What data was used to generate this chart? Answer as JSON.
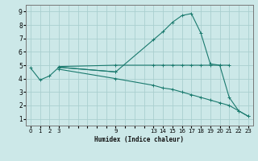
{
  "xlabel": "Humidex (Indice chaleur)",
  "bg_color": "#cce8e8",
  "grid_color": "#aacfcf",
  "line_color": "#1a7a6e",
  "xlim": [
    -0.5,
    23.5
  ],
  "ylim": [
    0.5,
    9.5
  ],
  "xticks_all": [
    0,
    1,
    2,
    3,
    4,
    5,
    6,
    7,
    8,
    9,
    10,
    11,
    12,
    13,
    14,
    15,
    16,
    17,
    18,
    19,
    20,
    21,
    22,
    23
  ],
  "xtick_labels": {
    "0": "0",
    "1": "1",
    "2": "2",
    "3": "3",
    "9": "9",
    "13": "13",
    "14": "14",
    "15": "15",
    "16": "16",
    "17": "17",
    "18": "18",
    "19": "19",
    "20": "20",
    "21": "21",
    "22": "22",
    "23": "23"
  },
  "yticks": [
    1,
    2,
    3,
    4,
    5,
    6,
    7,
    8,
    9
  ],
  "line1_x": [
    0,
    1,
    2,
    3,
    9,
    13,
    14,
    15,
    16,
    17,
    18,
    19,
    20,
    21,
    22,
    23
  ],
  "line1_y": [
    4.8,
    3.9,
    4.2,
    4.85,
    4.5,
    6.9,
    7.5,
    8.2,
    8.7,
    8.85,
    7.4,
    5.1,
    5.0,
    2.6,
    1.6,
    1.2
  ],
  "line2_x": [
    3,
    9,
    13,
    14,
    15,
    16,
    17,
    18,
    19,
    20,
    21
  ],
  "line2_y": [
    4.9,
    5.0,
    5.0,
    5.0,
    5.0,
    5.0,
    5.0,
    5.0,
    5.0,
    5.0,
    5.0
  ],
  "line3_x": [
    3,
    9,
    13,
    14,
    15,
    16,
    17,
    18,
    19,
    20,
    21,
    22,
    23
  ],
  "line3_y": [
    4.7,
    4.0,
    3.5,
    3.3,
    3.2,
    3.0,
    2.8,
    2.6,
    2.4,
    2.2,
    2.0,
    1.6,
    1.2
  ],
  "line4_x": [
    3,
    9
  ],
  "line4_y": [
    4.85,
    4.5
  ]
}
